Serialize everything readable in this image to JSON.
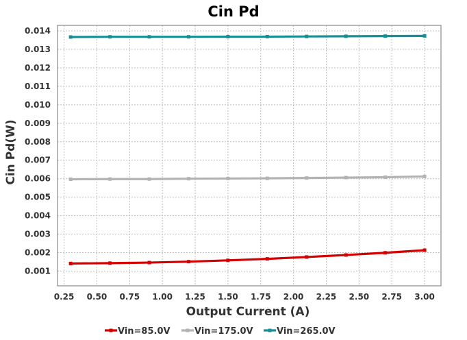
{
  "chart_data": {
    "type": "line",
    "title": "Cin Pd",
    "xlabel": "Output Current (A)",
    "ylabel": "Cin Pd(W)",
    "xlim": [
      0.2,
      3.125
    ],
    "ylim": [
      0.0002,
      0.0143
    ],
    "grid": true,
    "legend_position": "bottom",
    "x": [
      0.3,
      0.6,
      0.9,
      1.2,
      1.5,
      1.8,
      2.1,
      2.4,
      2.7,
      3.0
    ],
    "x_ticks": [
      "0.25",
      "0.50",
      "0.75",
      "1.00",
      "1.25",
      "1.50",
      "1.75",
      "2.00",
      "2.25",
      "2.50",
      "2.75",
      "3.00"
    ],
    "y_ticks": [
      "0.001",
      "0.002",
      "0.003",
      "0.004",
      "0.005",
      "0.006",
      "0.007",
      "0.008",
      "0.009",
      "0.010",
      "0.011",
      "0.012",
      "0.013",
      "0.014"
    ],
    "series": [
      {
        "name": "Vin=85.0V",
        "color": "#d40000",
        "values": [
          0.00141,
          0.00143,
          0.00146,
          0.00151,
          0.00158,
          0.00166,
          0.00176,
          0.00187,
          0.00199,
          0.00213
        ]
      },
      {
        "name": "Vin=175.0V",
        "color": "#b3b3b3",
        "values": [
          0.00597,
          0.00598,
          0.00598,
          0.006,
          0.00601,
          0.00602,
          0.00604,
          0.00606,
          0.00608,
          0.00612
        ]
      },
      {
        "name": "Vin=265.0V",
        "color": "#168f96",
        "values": [
          0.01367,
          0.01368,
          0.01368,
          0.01368,
          0.01369,
          0.01369,
          0.0137,
          0.01371,
          0.01372,
          0.01373
        ]
      }
    ]
  }
}
